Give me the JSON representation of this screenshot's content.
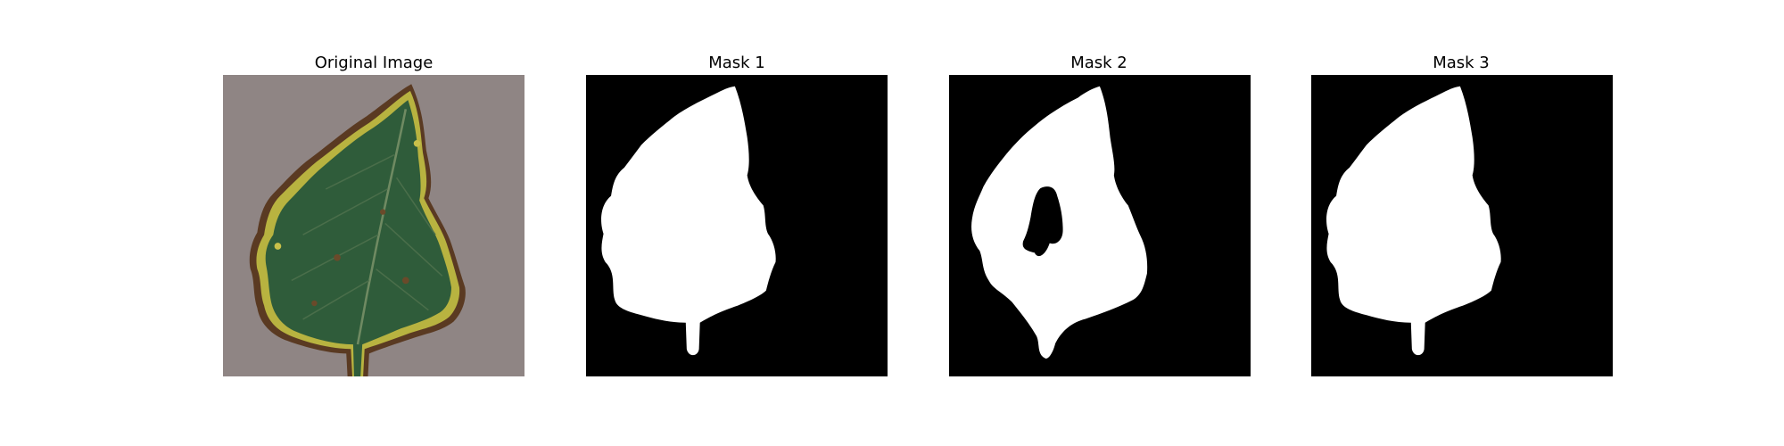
{
  "figure": {
    "panels": [
      {
        "title": "Original Image",
        "kind": "photo"
      },
      {
        "title": "Mask 1",
        "kind": "mask"
      },
      {
        "title": "Mask 2",
        "kind": "mask"
      },
      {
        "title": "Mask 3",
        "kind": "mask"
      }
    ]
  },
  "colors": {
    "page_background": "#ffffff",
    "mask_background": "#000000",
    "mask_foreground": "#ffffff",
    "photo_background": "#8f8584",
    "leaf_green": "#2f5c3a",
    "leaf_edge_yellow": "#b8b340",
    "leaf_edge_brown": "#5a3a22"
  }
}
